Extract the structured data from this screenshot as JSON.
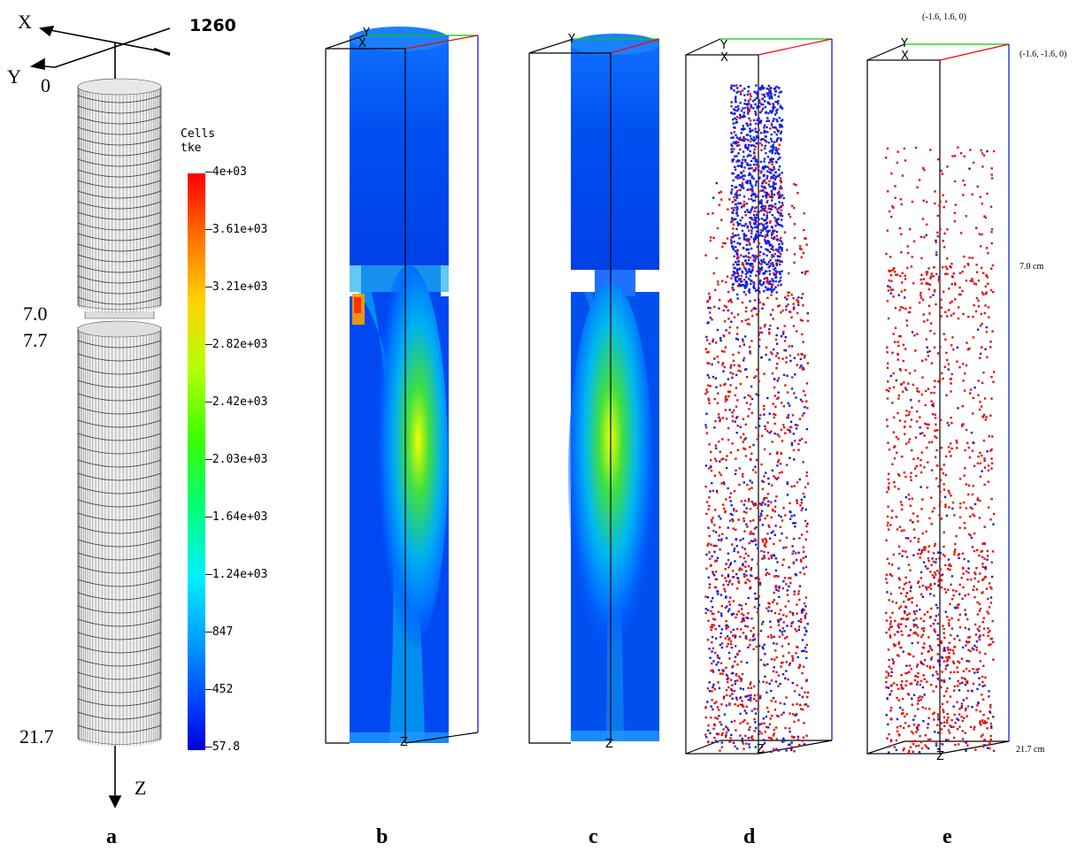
{
  "panel_a": {
    "axis_x": "X",
    "axis_y": "Y",
    "axis_z": "Z",
    "frame_number": "1260",
    "top_marker": "0",
    "marker_1": "7.0",
    "marker_2": "7.7",
    "bottom_marker": "21.7"
  },
  "colorbar": {
    "title_line1": "Cells",
    "title_line2": "tke",
    "ticks": [
      "4e+03",
      "3.61e+03",
      "3.21e+03",
      "2.82e+03",
      "2.42e+03",
      "2.03e+03",
      "1.64e+03",
      "1.24e+03",
      "847",
      "452",
      "57.8"
    ],
    "colors": [
      "#ff0000",
      "#ff7a00",
      "#ffd200",
      "#c8ff00",
      "#5aff00",
      "#00ff50",
      "#00ffc8",
      "#00d8ff",
      "#0080ff",
      "#0030ff",
      "#0000e6"
    ]
  },
  "box_axis_labels": {
    "y": "Y",
    "x": "X",
    "z": "Z"
  },
  "panel_e": {
    "corner_top": "(-1.6, 1.6, 0)",
    "corner_side": "(-1.6, -1.6, 0)",
    "mid_label": "7.0 cm",
    "bottom_label": "21.7 cm"
  },
  "particle_colors": {
    "primary": "#e01010",
    "secondary": "#1020e0"
  },
  "panel_labels": [
    "a",
    "b",
    "c",
    "d",
    "e"
  ]
}
